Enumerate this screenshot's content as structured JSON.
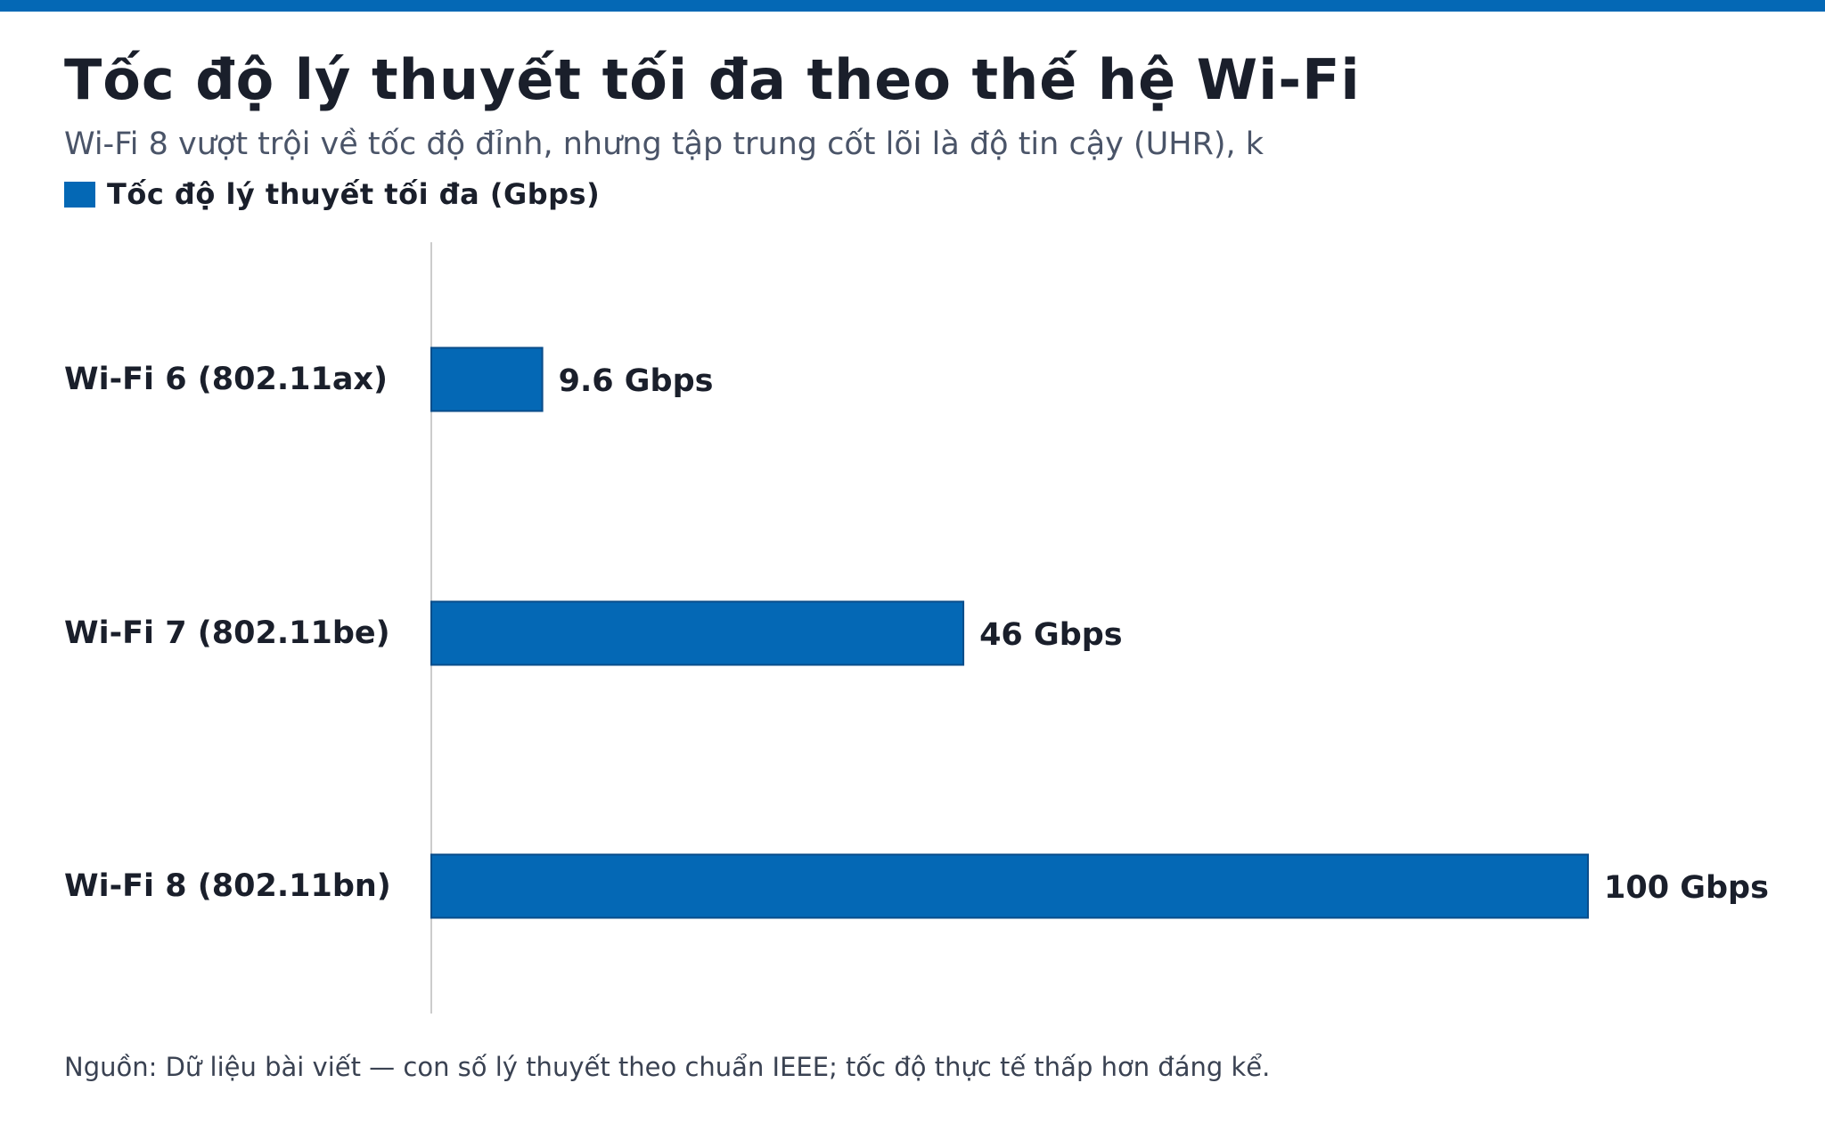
{
  "title": "Tốc độ lý thuyết tối đa theo thế hệ Wi-Fi",
  "subtitle": "Wi-Fi 8 vượt trội về tốc độ đỉnh, nhưng tập trung cốt lõi là độ tin cậy (UHR), k",
  "footer": "Nguồn: Dữ liệu bài viết — con số lý thuyết theo chuẩn IEEE; tốc độ thực tế thấp hơn đáng kể.",
  "colors": {
    "accent": "#0468b5",
    "bar_border": "#0a4d8a",
    "axis": "#cccccc",
    "text": "#1a1f2b",
    "muted": "#4a5468"
  },
  "chart_data": {
    "type": "bar",
    "orientation": "horizontal",
    "title": "Tốc độ lý thuyết tối đa theo thế hệ Wi-Fi",
    "subtitle": "Wi-Fi 8 vượt trội về tốc độ đỉnh, nhưng tập trung cốt lõi là độ tin cậy (UHR), k",
    "xlabel": "",
    "ylabel": "",
    "categories": [
      "Wi-Fi 6 (802.11ax)",
      "Wi-Fi 7 (802.11be)",
      "Wi-Fi 8 (802.11bn)"
    ],
    "series": [
      {
        "name": "Tốc độ lý thuyết tối đa (Gbps)",
        "values": [
          9.6,
          46,
          100
        ],
        "labels": [
          "9.6 Gbps",
          "46 Gbps",
          "100 Gbps"
        ]
      }
    ],
    "xlim": [
      0,
      100
    ],
    "grid": false,
    "legend": "top-left"
  }
}
